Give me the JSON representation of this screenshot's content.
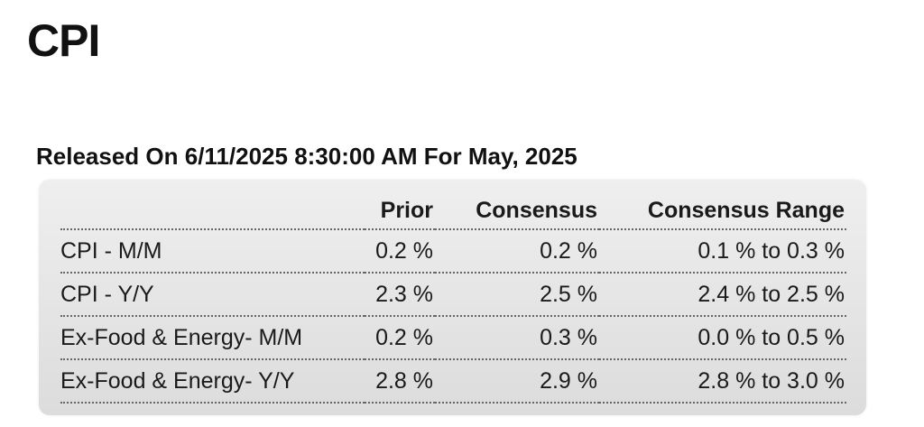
{
  "title": "CPI",
  "released": "Released On 6/11/2025 8:30:00 AM For May, 2025",
  "table": {
    "headers": {
      "label": "",
      "prior": "Prior",
      "consensus": "Consensus",
      "range": "Consensus Range"
    },
    "rows": [
      {
        "label": "CPI - M/M",
        "prior": "0.2 %",
        "consensus": "0.2 %",
        "range": "0.1 % to 0.3 %"
      },
      {
        "label": "CPI - Y/Y",
        "prior": "2.3 %",
        "consensus": "2.5 %",
        "range": "2.4 % to 2.5 %"
      },
      {
        "label": "Ex-Food & Energy- M/M",
        "prior": "0.2 %",
        "consensus": "0.3 %",
        "range": "0.0 % to 0.5 %"
      },
      {
        "label": "Ex-Food & Energy- Y/Y",
        "prior": "2.8 %",
        "consensus": "2.9 %",
        "range": "2.8 % to 3.0 %"
      }
    ]
  }
}
